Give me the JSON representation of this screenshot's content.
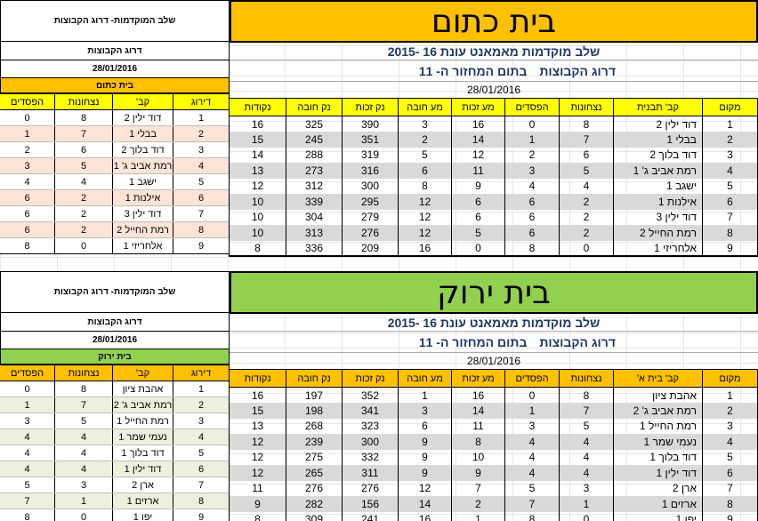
{
  "colors": {
    "yellow_header": "#ffc000",
    "green_header": "#92d050",
    "top_col_header": "#ffff00",
    "top_house_bar": "#ffc000",
    "top_left_row_tint": "#fce4d6",
    "bottom_col_header": "#ffc000",
    "bottom_house_bar": "#92d050",
    "bottom_left_row_tint": "#ebf1de",
    "shaded_row": "#d9d9d9"
  },
  "top": {
    "left": {
      "title": "שלב המוקדמות- דרוג הקבוצות",
      "subtitle": "דרוג הקבוצות",
      "date": "28/01/2016",
      "house": "בית כתום",
      "headers": [
        "דירוג",
        "קב'",
        "נצחונות",
        "הפסדים"
      ],
      "rows": [
        [
          "1",
          "דוד ילין 2",
          "8",
          "0"
        ],
        [
          "2",
          "בבלי 1",
          "7",
          "1"
        ],
        [
          "3",
          "דוד בלוך 2",
          "6",
          "2"
        ],
        [
          "4",
          "רמת אביב ג' 1",
          "5",
          "3"
        ],
        [
          "5",
          "ישגב 1",
          "4",
          "4"
        ],
        [
          "6",
          "אילנות 1",
          "2",
          "6"
        ],
        [
          "7",
          "דוד ילין 3",
          "2",
          "6"
        ],
        [
          "8",
          "רמת החייל 2",
          "2",
          "6"
        ],
        [
          "9",
          "אלחריזי 1",
          "0",
          "8"
        ]
      ]
    },
    "right": {
      "header": "בית כתום",
      "sub1": "שלב מוקדמות מאמאנט עונת 16 -2015",
      "sub2_a": "דרוג הקבוצות",
      "sub2_b": "בתום המחזור ה- 11",
      "date": "28/01/2016",
      "headers": [
        "מקום",
        "קב' תבנית",
        "נצחונות",
        "הפסדים",
        "מע זכות",
        "מע חובה",
        "נק זכות",
        "נק חובה",
        "נקודות"
      ],
      "rows": [
        [
          "1",
          "דוד ילין 2",
          "8",
          "0",
          "16",
          "3",
          "390",
          "325",
          "16"
        ],
        [
          "2",
          "בבלי 1",
          "7",
          "1",
          "14",
          "2",
          "351",
          "245",
          "15"
        ],
        [
          "3",
          "דוד בלוך 2",
          "6",
          "2",
          "12",
          "5",
          "319",
          "288",
          "14"
        ],
        [
          "4",
          "רמת אביב ג' 1",
          "5",
          "3",
          "11",
          "6",
          "316",
          "273",
          "13"
        ],
        [
          "5",
          "ישגב 1",
          "4",
          "4",
          "9",
          "8",
          "300",
          "312",
          "12"
        ],
        [
          "6",
          "אילנות 1",
          "2",
          "6",
          "6",
          "12",
          "295",
          "339",
          "10"
        ],
        [
          "7",
          "דוד ילין 3",
          "2",
          "6",
          "6",
          "12",
          "279",
          "304",
          "10"
        ],
        [
          "8",
          "רמת החייל 2",
          "2",
          "6",
          "5",
          "12",
          "276",
          "313",
          "10"
        ],
        [
          "9",
          "אלחריזי 1",
          "0",
          "8",
          "0",
          "16",
          "209",
          "336",
          "8"
        ]
      ]
    }
  },
  "bottom": {
    "left": {
      "title": "שלב המוקדמות- דרוג הקבוצות",
      "subtitle": "דרוג הקבוצות",
      "date": "28/01/2016",
      "house": "בית ירוק",
      "headers": [
        "דירוג",
        "קב'",
        "נצחונות",
        "הפסדים"
      ],
      "rows": [
        [
          "1",
          "אהבת ציון",
          "8",
          "0"
        ],
        [
          "2",
          "רמת אביב ג' 2",
          "7",
          "1"
        ],
        [
          "3",
          "רמת החייל 1",
          "5",
          "3"
        ],
        [
          "4",
          "נעמי שמר 1",
          "4",
          "4"
        ],
        [
          "5",
          "דוד בלוך 1",
          "4",
          "4"
        ],
        [
          "6",
          "דוד ילין 1",
          "4",
          "4"
        ],
        [
          "7",
          "ארן 2",
          "3",
          "5"
        ],
        [
          "8",
          "ארזים 1",
          "1",
          "7"
        ],
        [
          "9",
          "יפו 1",
          "0",
          "8"
        ]
      ]
    },
    "right": {
      "header": "בית ירוק",
      "sub1": "שלב מוקדמות מאמאנט עונת 16 -2015",
      "sub2_a": "דרוג הקבוצות",
      "sub2_b": "בתום המחזור ה- 11",
      "date": "28/01/2016",
      "headers": [
        "מקום",
        "קב' בית א'",
        "נצחונות",
        "הפסדים",
        "מע זכות",
        "מע חובה",
        "נק זכות",
        "נק חובה",
        "נקודות"
      ],
      "rows": [
        [
          "1",
          "אהבת ציון",
          "8",
          "0",
          "16",
          "1",
          "352",
          "197",
          "16"
        ],
        [
          "2",
          "רמת אביב ג' 2",
          "7",
          "1",
          "14",
          "3",
          "341",
          "198",
          "15"
        ],
        [
          "3",
          "רמת החייל 1",
          "5",
          "3",
          "11",
          "6",
          "323",
          "268",
          "13"
        ],
        [
          "4",
          "נעמי שמר 1",
          "4",
          "4",
          "8",
          "9",
          "300",
          "239",
          "12"
        ],
        [
          "5",
          "דוד בלוך 1",
          "4",
          "4",
          "10",
          "9",
          "332",
          "275",
          "12"
        ],
        [
          "6",
          "דוד ילין 1",
          "4",
          "4",
          "9",
          "9",
          "311",
          "265",
          "12"
        ],
        [
          "7",
          "ארן 2",
          "3",
          "5",
          "7",
          "12",
          "276",
          "276",
          "11"
        ],
        [
          "8",
          "ארזים 1",
          "1",
          "7",
          "2",
          "14",
          "156",
          "282",
          "9"
        ],
        [
          "9",
          "יפו 1",
          "0",
          "8",
          "1",
          "16",
          "241",
          "309",
          "8"
        ]
      ]
    }
  }
}
